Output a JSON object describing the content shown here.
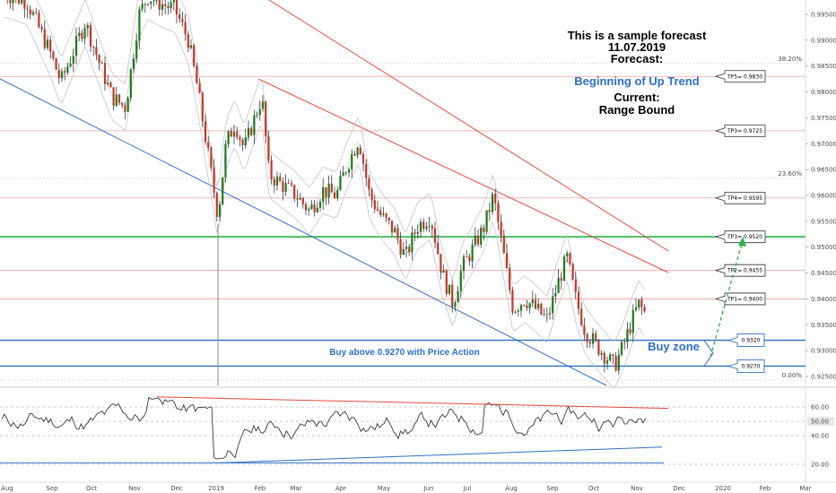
{
  "chart_data": {
    "type": "candlestick",
    "instrument_timeframe": "",
    "price_axis": {
      "ticks": [
        "0.99500",
        "0.99000",
        "0.98500",
        "0.98000",
        "0.97500",
        "0.97000",
        "0.96500",
        "0.96000",
        "0.95500",
        "0.95000",
        "0.94500",
        "0.94000",
        "0.93500",
        "0.93000",
        "0.92500"
      ],
      "range": [
        0.9225,
        0.9975
      ]
    },
    "rsi_axis": {
      "ticks": [
        "60.00",
        "40.00",
        "20.00"
      ],
      "current_label": "50.00",
      "range": [
        12,
        72
      ]
    },
    "time_axis": [
      "Aug",
      "Sep",
      "Oct",
      "Nov",
      "Dec",
      "2019",
      "Feb",
      "Mar",
      "Apr",
      "May",
      "Jun",
      "Jul",
      "Aug",
      "Sep",
      "Oct",
      "Nov",
      "Dec",
      "2020",
      "Feb",
      "Mar"
    ],
    "fib_labels": [
      {
        "label": "38.20%",
        "price": 0.9855
      },
      {
        "label": "23.60%",
        "price": 0.9633
      },
      {
        "label": "0.00%",
        "price": 0.9243
      }
    ],
    "annotation_lines": [
      "This is a sample forecast",
      "11.07.2019",
      "Forecast:",
      "Beginning of Up Trend",
      "Current:",
      "Range Bound"
    ],
    "targets": [
      {
        "label": "TP5= 0.9830",
        "price": 0.983
      },
      {
        "label": "TP3= 0.9725",
        "price": 0.9725
      },
      {
        "label": "TP4= 0.9595",
        "price": 0.9595
      },
      {
        "label": "TP3= 0.9520",
        "price": 0.952
      },
      {
        "label": "TP2= 0.9455",
        "price": 0.9455
      },
      {
        "label": "TP1= 0.9400",
        "price": 0.94
      }
    ],
    "buy_zone": {
      "label": "Buy zone",
      "upper_label": "0.9320",
      "lower_label": "0.9270",
      "upper": 0.932,
      "lower": 0.927,
      "note": "Buy above 0.9270 with Price Action"
    },
    "colors": {
      "bull": "#26a69a",
      "bear": "#ef5350",
      "candle_body": "#1f7a1f",
      "candle_down": "#c0392b",
      "support": "#2d6fc6",
      "resistance_red": "#e84c3d",
      "green_level": "#2bb34a",
      "fib": "#e0a0a0",
      "arrow": "#2bb34a"
    }
  }
}
